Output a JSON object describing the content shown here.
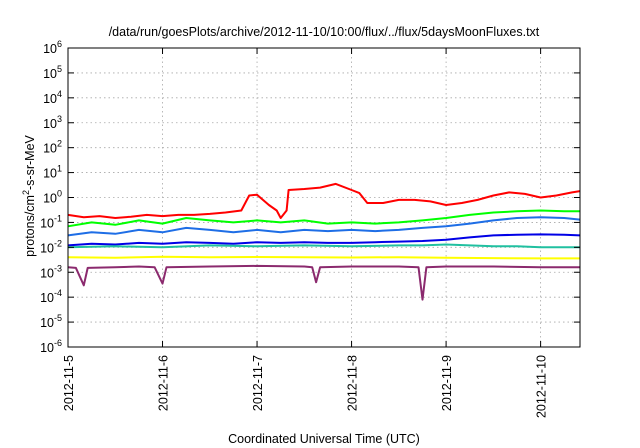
{
  "chart_data": {
    "type": "line",
    "title": "/data/run/goesPlots/archive/2012-11-10/10:00/flux/../flux/5daysMoonFluxes.txt",
    "xlabel": "Coordinated Universal Time (UTC)",
    "ylabel": {
      "base": "protons/cm",
      "exp": "2",
      "rest": "-s-sr-MeV"
    },
    "x_scale": "time",
    "y_scale": "log",
    "xlim": [
      "2012-11-05T00:00",
      "2012-11-10T10:00"
    ],
    "ylim": [
      1e-06,
      1000000.0
    ],
    "grid": true,
    "legend": "none",
    "x_ticks": [
      "2012-11-5",
      "2012-11-6",
      "2012-11-7",
      "2012-11-8",
      "2012-11-9",
      "2012-11-10"
    ],
    "y_ticks": [
      {
        "value": 1000000.0,
        "base": "10",
        "exp": "6"
      },
      {
        "value": 100000.0,
        "base": "10",
        "exp": "5"
      },
      {
        "value": 10000.0,
        "base": "10",
        "exp": "4"
      },
      {
        "value": 1000.0,
        "base": "10",
        "exp": "3"
      },
      {
        "value": 100.0,
        "base": "10",
        "exp": "2"
      },
      {
        "value": 10.0,
        "base": "10",
        "exp": "1"
      },
      {
        "value": 1.0,
        "base": "10",
        "exp": "0"
      },
      {
        "value": 0.1,
        "base": "10",
        "exp": "-1"
      },
      {
        "value": 0.01,
        "base": "10",
        "exp": "-2"
      },
      {
        "value": 0.001,
        "base": "10",
        "exp": "-3"
      },
      {
        "value": 0.0001,
        "base": "10",
        "exp": "-4"
      },
      {
        "value": 1e-05,
        "base": "10",
        "exp": "-5"
      },
      {
        "value": 1e-06,
        "base": "10",
        "exp": "-6"
      }
    ],
    "series": [
      {
        "color": "#ff0000",
        "points": [
          [
            "2012-11-05T00:00",
            0.2
          ],
          [
            "2012-11-05T04:00",
            0.16
          ],
          [
            "2012-11-05T08:00",
            0.18
          ],
          [
            "2012-11-05T12:00",
            0.15
          ],
          [
            "2012-11-05T16:00",
            0.17
          ],
          [
            "2012-11-05T20:00",
            0.2
          ],
          [
            "2012-11-06T00:00",
            0.18
          ],
          [
            "2012-11-06T04:00",
            0.2
          ],
          [
            "2012-11-06T08:00",
            0.2
          ],
          [
            "2012-11-06T12:00",
            0.22
          ],
          [
            "2012-11-06T16:00",
            0.25
          ],
          [
            "2012-11-06T20:00",
            0.3
          ],
          [
            "2012-11-06T22:00",
            1.2
          ],
          [
            "2012-11-07T00:00",
            1.3
          ],
          [
            "2012-11-07T03:00",
            0.5
          ],
          [
            "2012-11-07T05:00",
            0.3
          ],
          [
            "2012-11-07T06:00",
            0.15
          ],
          [
            "2012-11-07T07:30",
            0.3
          ],
          [
            "2012-11-07T08:00",
            2.0
          ],
          [
            "2012-11-07T12:00",
            2.2
          ],
          [
            "2012-11-07T16:00",
            2.5
          ],
          [
            "2012-11-07T20:00",
            3.5
          ],
          [
            "2012-11-08T00:00",
            2.0
          ],
          [
            "2012-11-08T02:00",
            1.5
          ],
          [
            "2012-11-08T04:00",
            0.6
          ],
          [
            "2012-11-08T08:00",
            0.6
          ],
          [
            "2012-11-08T12:00",
            0.8
          ],
          [
            "2012-11-08T16:00",
            0.8
          ],
          [
            "2012-11-08T20:00",
            0.7
          ],
          [
            "2012-11-09T00:00",
            0.5
          ],
          [
            "2012-11-09T04:00",
            0.6
          ],
          [
            "2012-11-09T08:00",
            0.8
          ],
          [
            "2012-11-09T12:00",
            1.2
          ],
          [
            "2012-11-09T16:00",
            1.6
          ],
          [
            "2012-11-09T20:00",
            1.4
          ],
          [
            "2012-11-10T00:00",
            1.0
          ],
          [
            "2012-11-10T04:00",
            1.2
          ],
          [
            "2012-11-10T08:00",
            1.6
          ],
          [
            "2012-11-10T10:00",
            1.8
          ]
        ]
      },
      {
        "color": "#00ff00",
        "points": [
          [
            "2012-11-05T00:00",
            0.07
          ],
          [
            "2012-11-05T06:00",
            0.1
          ],
          [
            "2012-11-05T12:00",
            0.08
          ],
          [
            "2012-11-05T18:00",
            0.12
          ],
          [
            "2012-11-06T00:00",
            0.09
          ],
          [
            "2012-11-06T06:00",
            0.15
          ],
          [
            "2012-11-06T12:00",
            0.12
          ],
          [
            "2012-11-06T18:00",
            0.1
          ],
          [
            "2012-11-07T00:00",
            0.12
          ],
          [
            "2012-11-07T06:00",
            0.1
          ],
          [
            "2012-11-07T12:00",
            0.12
          ],
          [
            "2012-11-07T18:00",
            0.09
          ],
          [
            "2012-11-08T00:00",
            0.1
          ],
          [
            "2012-11-08T06:00",
            0.09
          ],
          [
            "2012-11-08T12:00",
            0.1
          ],
          [
            "2012-11-08T18:00",
            0.12
          ],
          [
            "2012-11-09T00:00",
            0.15
          ],
          [
            "2012-11-09T06:00",
            0.2
          ],
          [
            "2012-11-09T12:00",
            0.25
          ],
          [
            "2012-11-09T18:00",
            0.28
          ],
          [
            "2012-11-10T00:00",
            0.3
          ],
          [
            "2012-11-10T06:00",
            0.28
          ],
          [
            "2012-11-10T10:00",
            0.28
          ]
        ]
      },
      {
        "color": "#1e6ee6",
        "points": [
          [
            "2012-11-05T00:00",
            0.03
          ],
          [
            "2012-11-05T06:00",
            0.04
          ],
          [
            "2012-11-05T12:00",
            0.035
          ],
          [
            "2012-11-05T18:00",
            0.05
          ],
          [
            "2012-11-06T00:00",
            0.04
          ],
          [
            "2012-11-06T06:00",
            0.06
          ],
          [
            "2012-11-06T12:00",
            0.05
          ],
          [
            "2012-11-06T18:00",
            0.04
          ],
          [
            "2012-11-07T00:00",
            0.05
          ],
          [
            "2012-11-07T06:00",
            0.04
          ],
          [
            "2012-11-07T12:00",
            0.05
          ],
          [
            "2012-11-07T18:00",
            0.045
          ],
          [
            "2012-11-08T00:00",
            0.05
          ],
          [
            "2012-11-08T06:00",
            0.045
          ],
          [
            "2012-11-08T12:00",
            0.05
          ],
          [
            "2012-11-08T18:00",
            0.06
          ],
          [
            "2012-11-09T00:00",
            0.07
          ],
          [
            "2012-11-09T06:00",
            0.09
          ],
          [
            "2012-11-09T12:00",
            0.12
          ],
          [
            "2012-11-09T18:00",
            0.15
          ],
          [
            "2012-11-10T00:00",
            0.16
          ],
          [
            "2012-11-10T06:00",
            0.15
          ],
          [
            "2012-11-10T10:00",
            0.13
          ]
        ]
      },
      {
        "color": "#0000e6",
        "points": [
          [
            "2012-11-05T00:00",
            0.012
          ],
          [
            "2012-11-05T06:00",
            0.014
          ],
          [
            "2012-11-05T12:00",
            0.013
          ],
          [
            "2012-11-05T18:00",
            0.015
          ],
          [
            "2012-11-06T00:00",
            0.014
          ],
          [
            "2012-11-06T06:00",
            0.016
          ],
          [
            "2012-11-06T12:00",
            0.015
          ],
          [
            "2012-11-06T18:00",
            0.014
          ],
          [
            "2012-11-07T00:00",
            0.016
          ],
          [
            "2012-11-07T06:00",
            0.015
          ],
          [
            "2012-11-07T12:00",
            0.016
          ],
          [
            "2012-11-07T18:00",
            0.015
          ],
          [
            "2012-11-08T00:00",
            0.015
          ],
          [
            "2012-11-08T06:00",
            0.016
          ],
          [
            "2012-11-08T12:00",
            0.017
          ],
          [
            "2012-11-08T18:00",
            0.018
          ],
          [
            "2012-11-09T00:00",
            0.02
          ],
          [
            "2012-11-09T06:00",
            0.025
          ],
          [
            "2012-11-09T12:00",
            0.03
          ],
          [
            "2012-11-09T18:00",
            0.032
          ],
          [
            "2012-11-10T00:00",
            0.033
          ],
          [
            "2012-11-10T06:00",
            0.032
          ],
          [
            "2012-11-10T10:00",
            0.03
          ]
        ]
      },
      {
        "color": "#20c0a0",
        "points": [
          [
            "2012-11-05T00:00",
            0.01
          ],
          [
            "2012-11-05T12:00",
            0.011
          ],
          [
            "2012-11-06T00:00",
            0.01
          ],
          [
            "2012-11-06T12:00",
            0.012
          ],
          [
            "2012-11-07T00:00",
            0.011
          ],
          [
            "2012-11-07T12:00",
            0.012
          ],
          [
            "2012-11-08T00:00",
            0.011
          ],
          [
            "2012-11-08T12:00",
            0.012
          ],
          [
            "2012-11-08T18:00",
            0.012
          ],
          [
            "2012-11-09T00:00",
            0.013
          ],
          [
            "2012-11-09T06:00",
            0.012
          ],
          [
            "2012-11-09T12:00",
            0.011
          ],
          [
            "2012-11-09T18:00",
            0.011
          ],
          [
            "2012-11-10T00:00",
            0.01
          ],
          [
            "2012-11-10T06:00",
            0.01
          ],
          [
            "2012-11-10T10:00",
            0.01
          ]
        ]
      },
      {
        "color": "#ffff00",
        "points": [
          [
            "2012-11-05T00:00",
            0.004
          ],
          [
            "2012-11-05T12:00",
            0.0038
          ],
          [
            "2012-11-06T00:00",
            0.0042
          ],
          [
            "2012-11-06T12:00",
            0.004
          ],
          [
            "2012-11-07T00:00",
            0.0041
          ],
          [
            "2012-11-07T12:00",
            0.004
          ],
          [
            "2012-11-08T00:00",
            0.0039
          ],
          [
            "2012-11-08T12:00",
            0.004
          ],
          [
            "2012-11-09T00:00",
            0.0038
          ],
          [
            "2012-11-09T12:00",
            0.0037
          ],
          [
            "2012-11-10T00:00",
            0.0036
          ],
          [
            "2012-11-10T10:00",
            0.0036
          ]
        ]
      },
      {
        "color": "#8b2a6e",
        "points": [
          [
            "2012-11-05T00:00",
            0.0016
          ],
          [
            "2012-11-05T02:00",
            0.0015
          ],
          [
            "2012-11-05T04:00",
            0.0003
          ],
          [
            "2012-11-05T05:00",
            0.0015
          ],
          [
            "2012-11-05T12:00",
            0.0016
          ],
          [
            "2012-11-05T18:00",
            0.0017
          ],
          [
            "2012-11-05T22:00",
            0.0016
          ],
          [
            "2012-11-06T00:00",
            0.00035
          ],
          [
            "2012-11-06T01:00",
            0.0016
          ],
          [
            "2012-11-06T12:00",
            0.0017
          ],
          [
            "2012-11-07T00:00",
            0.0018
          ],
          [
            "2012-11-07T12:00",
            0.0017
          ],
          [
            "2012-11-07T14:00",
            0.0016
          ],
          [
            "2012-11-07T15:00",
            0.0004
          ],
          [
            "2012-11-07T16:00",
            0.0016
          ],
          [
            "2012-11-08T00:00",
            0.0017
          ],
          [
            "2012-11-08T12:00",
            0.0017
          ],
          [
            "2012-11-08T17:00",
            0.0016
          ],
          [
            "2012-11-08T18:00",
            8e-05
          ],
          [
            "2012-11-08T19:00",
            0.0016
          ],
          [
            "2012-11-09T00:00",
            0.0017
          ],
          [
            "2012-11-09T12:00",
            0.0017
          ],
          [
            "2012-11-10T00:00",
            0.0016
          ],
          [
            "2012-11-10T10:00",
            0.0016
          ]
        ]
      }
    ]
  }
}
